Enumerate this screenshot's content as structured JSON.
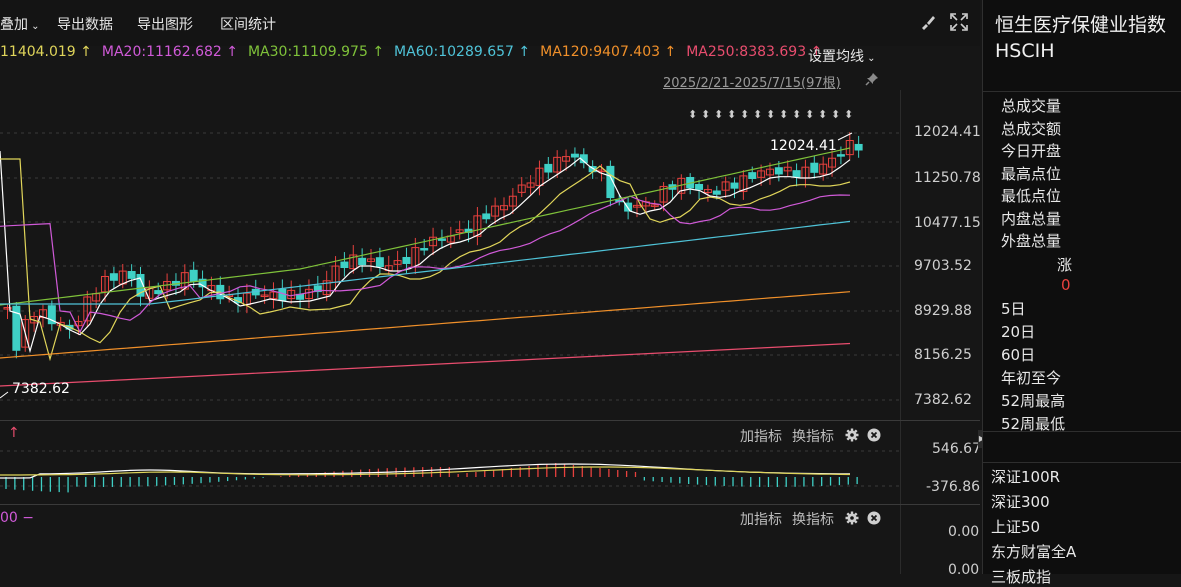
{
  "toolbar": {
    "items": [
      "叠加",
      "导出数据",
      "导出图形",
      "区间统计"
    ]
  },
  "ma": [
    {
      "label": "11404.019",
      "color": "#e0d55a"
    },
    {
      "label": "MA20:11162.682",
      "color": "#d05ad8"
    },
    {
      "label": "MA30:11109.975",
      "color": "#7fc23a"
    },
    {
      "label": "MA60:10289.657",
      "color": "#4fc3d8"
    },
    {
      "label": "MA120:9407.403",
      "color": "#f0902a"
    },
    {
      "label": "MA250:8383.693",
      "color": "#e84d6e"
    }
  ],
  "settings_label": "设置均线",
  "range_label": "2025/2/21-2025/7/15(97根)",
  "main_axis": [
    "12024.41",
    "11250.78",
    "10477.15",
    "9703.52",
    "8929.88",
    "8156.25",
    "7382.62"
  ],
  "annotations": {
    "high": "12024.41",
    "low": "7382.62"
  },
  "macd_axis": [
    "546.67",
    "-376.86"
  ],
  "vol_axis": [
    "0.00",
    "0.00"
  ],
  "panel_buttons": {
    "add": "加指标",
    "switch": "换指标"
  },
  "vol_left": "00",
  "right_panel": {
    "title": "恒生医疗保健业指数",
    "code": "HSCIH",
    "stats": [
      "总成交量",
      "总成交额",
      "今日开盘",
      "最高点位",
      "最低点位",
      "内盘总量",
      "外盘总量"
    ],
    "change_label": "涨",
    "change_value": "0",
    "periods": [
      "5日",
      "20日",
      "60日",
      "年初至今",
      "52周最高",
      "52周最低"
    ],
    "indices": [
      "深证100R",
      "深证300",
      "上证50",
      "东方财富全A",
      "三板成指"
    ]
  },
  "colors": {
    "up": "#e8413e",
    "down": "#3fd0c6",
    "white": "#ffffff"
  }
}
